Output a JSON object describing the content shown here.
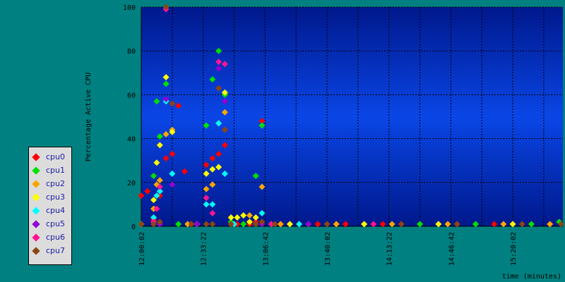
{
  "chart_data": {
    "type": "scatter",
    "ylabel": "Percentage Active CPU",
    "xlabel": "time (minutes)",
    "ylim": [
      0,
      100
    ],
    "y_ticks": [
      0,
      20,
      40,
      60,
      80,
      100
    ],
    "x_ticks": [
      "12:00:02",
      "12:33:22",
      "13:06:42",
      "13:40:02",
      "14:13:22",
      "14:46:42",
      "15:20:02"
    ],
    "x_start": "12:00:02",
    "x_end": "15:47:00",
    "grid": true,
    "legend_position": "left",
    "background_gradient": [
      "#00188c",
      "#0a46e6"
    ],
    "series": [
      {
        "name": "cpu0",
        "color": "#ff0000",
        "points": [
          [
            "12:00:02",
            14
          ],
          [
            "12:03:22",
            16
          ],
          [
            "12:06:42",
            3
          ],
          [
            "12:10:02",
            14
          ],
          [
            "12:13:22",
            31
          ],
          [
            "12:16:42",
            33
          ],
          [
            "12:20:02",
            55
          ],
          [
            "12:23:22",
            25
          ],
          [
            "12:35:02",
            28
          ],
          [
            "12:38:22",
            31
          ],
          [
            "12:41:42",
            33
          ],
          [
            "12:45:02",
            37
          ],
          [
            "12:48:22",
            1
          ],
          [
            "12:51:42",
            1
          ],
          [
            "12:55:02",
            1
          ],
          [
            "12:58:22",
            1
          ],
          [
            "13:01:42",
            2
          ],
          [
            "13:05:02",
            48
          ],
          [
            "12:26:42",
            1
          ],
          [
            "12:30:02",
            1
          ],
          [
            "13:10:02",
            1
          ],
          [
            "13:15:02",
            1
          ],
          [
            "13:20:02",
            1
          ],
          [
            "13:25:02",
            1
          ],
          [
            "13:30:02",
            1
          ],
          [
            "13:35:02",
            1
          ],
          [
            "13:45:02",
            1
          ],
          [
            "13:50:02",
            1
          ],
          [
            "14:00:02",
            1
          ],
          [
            "14:10:02",
            1
          ],
          [
            "14:20:02",
            1
          ],
          [
            "14:30:02",
            1
          ],
          [
            "14:40:02",
            1
          ],
          [
            "14:50:02",
            1
          ],
          [
            "15:00:02",
            1
          ],
          [
            "15:10:02",
            1
          ],
          [
            "15:20:02",
            1
          ],
          [
            "15:30:02",
            1
          ],
          [
            "15:40:02",
            1
          ]
        ]
      },
      {
        "name": "cpu1",
        "color": "#00e000",
        "points": [
          [
            "12:06:42",
            23
          ],
          [
            "12:08:22",
            57
          ],
          [
            "12:10:02",
            41
          ],
          [
            "12:13:22",
            65
          ],
          [
            "12:35:02",
            46
          ],
          [
            "12:38:22",
            67
          ],
          [
            "12:41:42",
            80
          ],
          [
            "12:45:02",
            60
          ],
          [
            "12:48:22",
            2
          ],
          [
            "12:55:02",
            1
          ],
          [
            "13:01:42",
            23
          ],
          [
            "13:05:02",
            46
          ],
          [
            "12:00:02",
            1
          ],
          [
            "12:20:02",
            1
          ],
          [
            "13:10:02",
            1
          ],
          [
            "13:30:02",
            1
          ],
          [
            "14:00:02",
            1
          ],
          [
            "14:30:02",
            1
          ],
          [
            "15:00:02",
            1
          ],
          [
            "15:30:02",
            1
          ],
          [
            "15:45:02",
            2
          ]
        ]
      },
      {
        "name": "cpu2",
        "color": "#ffa500",
        "points": [
          [
            "12:06:42",
            8
          ],
          [
            "12:08:22",
            19
          ],
          [
            "12:10:02",
            21
          ],
          [
            "12:13:22",
            42
          ],
          [
            "12:16:42",
            44
          ],
          [
            "12:35:02",
            17
          ],
          [
            "12:38:22",
            19
          ],
          [
            "12:41:42",
            47
          ],
          [
            "12:45:02",
            52
          ],
          [
            "12:58:22",
            5
          ],
          [
            "13:05:02",
            18
          ],
          [
            "12:00:02",
            1
          ],
          [
            "12:25:02",
            1
          ],
          [
            "13:15:02",
            1
          ],
          [
            "13:45:02",
            1
          ],
          [
            "14:15:02",
            1
          ],
          [
            "14:45:02",
            1
          ],
          [
            "15:15:02",
            1
          ],
          [
            "15:40:02",
            1
          ]
        ]
      },
      {
        "name": "cpu3",
        "color": "#ffff00",
        "points": [
          [
            "12:06:42",
            12
          ],
          [
            "12:08:22",
            29
          ],
          [
            "12:10:02",
            37
          ],
          [
            "12:13:22",
            68
          ],
          [
            "12:16:42",
            43
          ],
          [
            "12:35:02",
            24
          ],
          [
            "12:38:22",
            26
          ],
          [
            "12:41:42",
            27
          ],
          [
            "12:45:02",
            61
          ],
          [
            "12:48:22",
            4
          ],
          [
            "12:51:42",
            4
          ],
          [
            "12:55:02",
            5
          ],
          [
            "12:58:22",
            2
          ],
          [
            "13:01:42",
            4
          ],
          [
            "12:00:02",
            1
          ],
          [
            "12:30:02",
            1
          ],
          [
            "13:20:02",
            1
          ],
          [
            "14:00:02",
            1
          ],
          [
            "14:40:02",
            1
          ],
          [
            "15:20:02",
            1
          ]
        ]
      },
      {
        "name": "cpu4",
        "color": "#00ffff",
        "points": [
          [
            "12:06:42",
            4
          ],
          [
            "12:08:22",
            14
          ],
          [
            "12:10:02",
            16
          ],
          [
            "12:13:22",
            57
          ],
          [
            "12:16:42",
            24
          ],
          [
            "12:35:02",
            10
          ],
          [
            "12:38:22",
            10
          ],
          [
            "12:41:42",
            47
          ],
          [
            "12:45:02",
            24
          ],
          [
            "13:01:42",
            1
          ],
          [
            "13:05:02",
            6
          ],
          [
            "12:50:02",
            1
          ],
          [
            "13:25:02",
            1
          ]
        ]
      },
      {
        "name": "cpu5",
        "color": "#9400d3",
        "points": [
          [
            "12:06:42",
            1
          ],
          [
            "12:10:02",
            1
          ],
          [
            "12:13:22",
            58
          ],
          [
            "12:16:42",
            19
          ],
          [
            "12:41:42",
            72
          ],
          [
            "12:45:02",
            57
          ],
          [
            "13:01:42",
            1
          ],
          [
            "13:05:02",
            1
          ],
          [
            "12:30:02",
            1
          ],
          [
            "13:30:02",
            1
          ]
        ]
      },
      {
        "name": "cpu6",
        "color": "#ff1493",
        "points": [
          [
            "12:06:42",
            2
          ],
          [
            "12:08:22",
            8
          ],
          [
            "12:10:02",
            18
          ],
          [
            "12:13:22",
            99
          ],
          [
            "12:35:02",
            13
          ],
          [
            "12:38:22",
            6
          ],
          [
            "12:41:42",
            75
          ],
          [
            "12:45:02",
            74
          ],
          [
            "12:48:22",
            1
          ],
          [
            "13:10:02",
            1
          ],
          [
            "14:05:02",
            1
          ]
        ]
      },
      {
        "name": "cpu7",
        "color": "#8b4513",
        "points": [
          [
            "12:00:02",
            1
          ],
          [
            "12:06:42",
            1
          ],
          [
            "12:10:02",
            2
          ],
          [
            "12:13:22",
            100
          ],
          [
            "12:16:42",
            56
          ],
          [
            "12:35:02",
            1
          ],
          [
            "12:38:22",
            1
          ],
          [
            "12:41:42",
            63
          ],
          [
            "12:45:02",
            44
          ],
          [
            "12:48:22",
            1
          ],
          [
            "13:01:42",
            1
          ],
          [
            "13:05:02",
            2
          ],
          [
            "12:27:02",
            1
          ],
          [
            "13:12:02",
            1
          ],
          [
            "13:40:02",
            1
          ],
          [
            "14:20:02",
            1
          ],
          [
            "14:50:02",
            1
          ],
          [
            "15:25:02",
            1
          ],
          [
            "15:46:00",
            1
          ]
        ]
      }
    ]
  }
}
